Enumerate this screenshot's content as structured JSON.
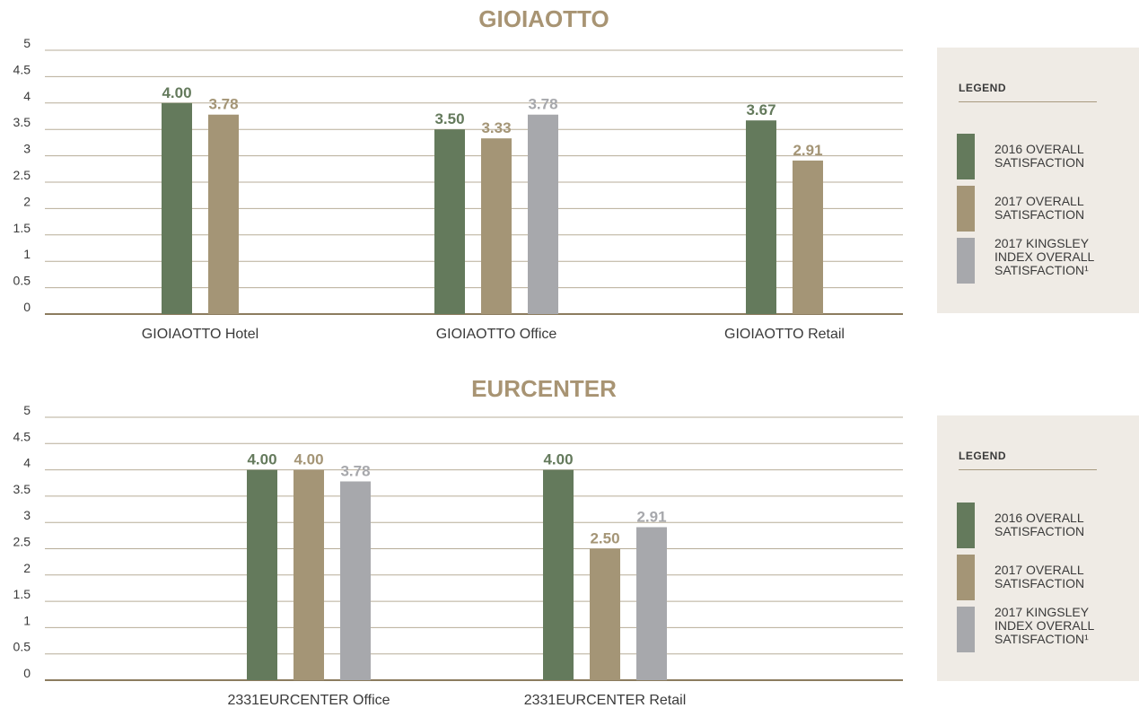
{
  "colors": {
    "s2016": "#647a5c",
    "s2017": "#a49576",
    "kingsley": "#a7a8ac",
    "title": "#a89473",
    "grid": "#b7ad98",
    "axis": "#8c7c5f",
    "text": "#3a3a3a"
  },
  "legend": {
    "title": "LEGEND",
    "items": [
      {
        "label": "2016 OVERALL SATISFACTION",
        "color": "#647a5c"
      },
      {
        "label": "2017 OVERALL SATISFACTION",
        "color": "#a49576"
      },
      {
        "label": "2017 KINGSLEY INDEX OVERALL SATISFACTION¹",
        "color": "#a7a8ac"
      }
    ]
  },
  "chart_data": [
    {
      "type": "bar",
      "title": "GIOIAOTTO",
      "ylim": [
        0,
        5
      ],
      "yticks": [
        "0",
        "0.5",
        "1",
        "1.5",
        "2",
        "2.5",
        "3",
        "3.5",
        "4",
        "4.5",
        "5"
      ],
      "grid": true,
      "legend": "right",
      "series_names": [
        "2016 OVERALL SATISFACTION",
        "2017 OVERALL SATISFACTION",
        "2017 KINGSLEY INDEX OVERALL SATISFACTION¹"
      ],
      "categories": [
        {
          "label": "GIOIAOTTO Hotel",
          "bars": [
            {
              "series": 0,
              "value": 4.0,
              "label": "4.00"
            },
            {
              "series": 1,
              "value": 3.78,
              "label": "3.78"
            }
          ]
        },
        {
          "label": "GIOIAOTTO Office",
          "bars": [
            {
              "series": 0,
              "value": 3.5,
              "label": "3.50"
            },
            {
              "series": 1,
              "value": 3.33,
              "label": "3.33"
            },
            {
              "series": 2,
              "value": 3.78,
              "label": "3.78"
            }
          ]
        },
        {
          "label": "GIOIAOTTO Retail",
          "bars": [
            {
              "series": 0,
              "value": 3.67,
              "label": "3.67"
            },
            {
              "series": 1,
              "value": 2.91,
              "label": "2.91"
            }
          ]
        }
      ]
    },
    {
      "type": "bar",
      "title": "EURCENTER",
      "ylim": [
        0,
        5
      ],
      "yticks": [
        "0",
        "0.5",
        "1",
        "1.5",
        "2",
        "2.5",
        "3",
        "3.5",
        "4",
        "4.5",
        "5"
      ],
      "grid": true,
      "legend": "right",
      "series_names": [
        "2016 OVERALL SATISFACTION",
        "2017 OVERALL SATISFACTION",
        "2017 KINGSLEY INDEX OVERALL SATISFACTION¹"
      ],
      "categories": [
        {
          "label": "2331EURCENTER Office",
          "bars": [
            {
              "series": 0,
              "value": 4.0,
              "label": "4.00"
            },
            {
              "series": 1,
              "value": 4.0,
              "label": "4.00"
            },
            {
              "series": 2,
              "value": 3.78,
              "label": "3.78"
            }
          ]
        },
        {
          "label": "2331EURCENTER Retail",
          "bars": [
            {
              "series": 0,
              "value": 4.0,
              "label": "4.00"
            },
            {
              "series": 1,
              "value": 2.5,
              "label": "2.50"
            },
            {
              "series": 2,
              "value": 2.91,
              "label": "2.91"
            }
          ]
        }
      ]
    }
  ]
}
